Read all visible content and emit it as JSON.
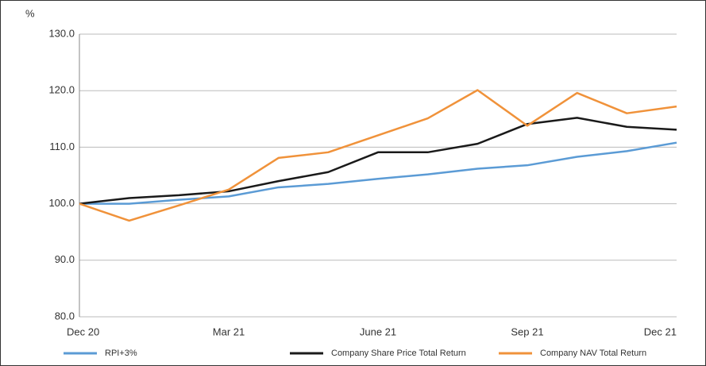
{
  "chart_data": {
    "type": "line",
    "y_axis_label": "%",
    "categories": [
      "Dec 20",
      null,
      null,
      "Mar 21",
      null,
      null,
      "June 21",
      null,
      null,
      "Sep 21",
      null,
      null,
      "Dec 21"
    ],
    "series": [
      {
        "name": "RPI+3%",
        "color": "#5b9bd5",
        "values": [
          100,
          100,
          100.7,
          101.3,
          102.9,
          103.5,
          104.4,
          105.2,
          106.2,
          106.8,
          108.3,
          109.3,
          110.8
        ]
      },
      {
        "name": "Company Share Price Total Return",
        "color": "#1a1a1a",
        "values": [
          100,
          101.0,
          101.5,
          102.2,
          104.0,
          105.6,
          109.1,
          109.1,
          110.6,
          114.1,
          115.2,
          113.6,
          113.1
        ]
      },
      {
        "name": "Company NAV Total Return",
        "color": "#f0923a",
        "values": [
          100,
          97.0,
          99.7,
          102.5,
          108.1,
          109.1,
          112.1,
          115.1,
          120.1,
          113.8,
          119.6,
          116.0,
          117.2
        ]
      }
    ],
    "ylim": [
      80,
      130
    ],
    "yticks": [
      {
        "value": 80,
        "label": "80.0"
      },
      {
        "value": 90,
        "label": "90.0"
      },
      {
        "value": 100,
        "label": "100.0"
      },
      {
        "value": 110,
        "label": "110.0"
      },
      {
        "value": 120,
        "label": "120.0"
      },
      {
        "value": 130,
        "label": "130.0"
      }
    ],
    "grid": true
  }
}
